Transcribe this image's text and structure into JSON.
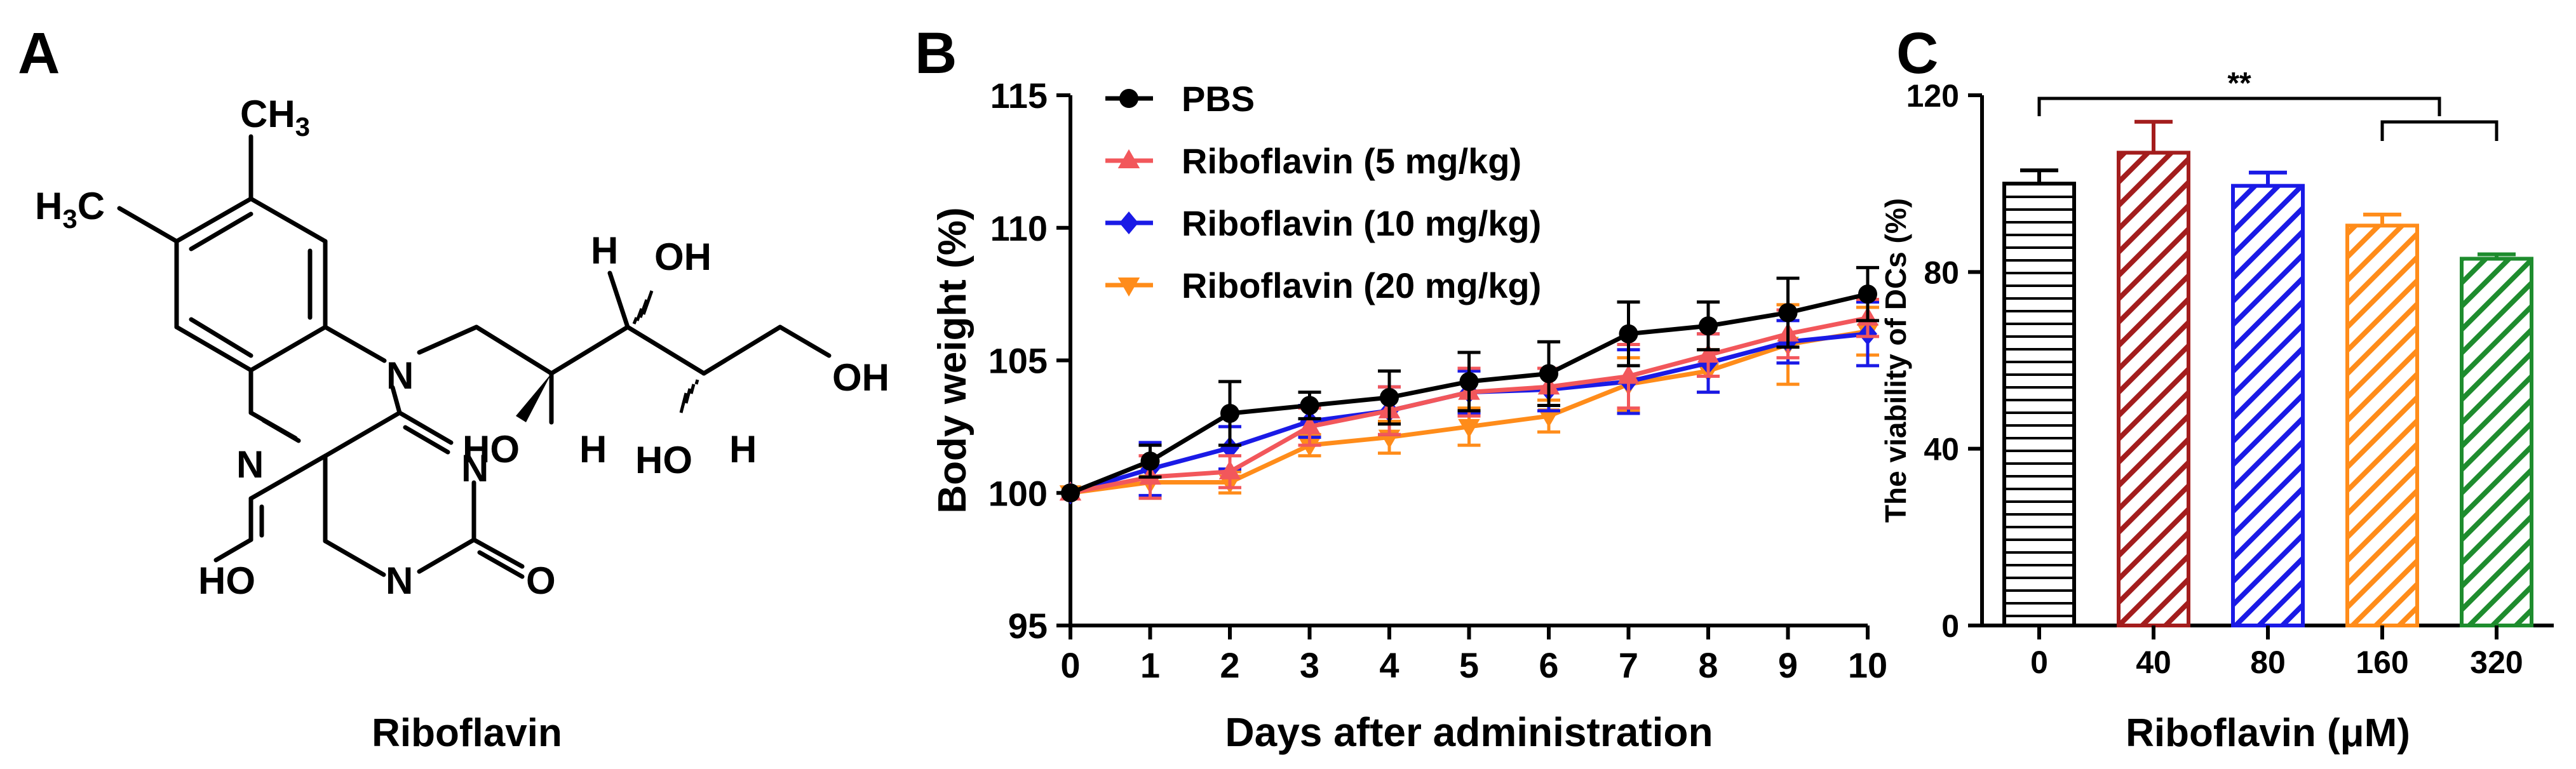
{
  "figure": {
    "panel_a": {
      "letter": "A",
      "caption": "Riboflavin",
      "atoms": {
        "ch3": "CH",
        "ch3_sub": "3",
        "h3c": "H",
        "h3c_sub": "3",
        "h3c_c": "C",
        "n10": "N",
        "n5": "N",
        "n3": "N",
        "n1": "N",
        "ho_bottom": "HO",
        "o_bottom": "O",
        "h1": "H",
        "oh1": "OH",
        "oh_right": "OH",
        "ho_mid": "HO",
        "h2": "H",
        "ho_mid2": "HO",
        "h3": "H"
      }
    },
    "panel_b": {
      "letter": "B"
    },
    "panel_c": {
      "letter": "C",
      "significance": "**"
    }
  },
  "chart_data": [
    {
      "type": "line",
      "title": "",
      "xlabel": "Days after administration",
      "ylabel": "Body weight (%)",
      "x": [
        0,
        1,
        2,
        3,
        4,
        5,
        6,
        7,
        8,
        9,
        10
      ],
      "xlim": [
        0,
        10
      ],
      "ylim": [
        95,
        115
      ],
      "xticks": [
        "0",
        "1",
        "2",
        "3",
        "4",
        "5",
        "6",
        "7",
        "8",
        "9",
        "10"
      ],
      "yticks": [
        "95",
        "100",
        "105",
        "110",
        "115"
      ],
      "ytick_values": [
        95,
        100,
        105,
        110,
        115
      ],
      "legend_position": "top-left",
      "series": [
        {
          "name": "PBS",
          "color": "#000000",
          "marker": "circle",
          "values": [
            100,
            101.2,
            103.0,
            103.3,
            103.6,
            104.2,
            104.5,
            106.0,
            106.3,
            106.8,
            107.5
          ],
          "errors": [
            0,
            0.6,
            1.2,
            0.5,
            1.0,
            1.1,
            1.2,
            1.2,
            0.9,
            1.3,
            1.0
          ]
        },
        {
          "name": "Riboflavin (5 mg/kg)",
          "color": "#f2575b",
          "marker": "triangle-up",
          "values": [
            100,
            100.6,
            100.8,
            102.5,
            103.1,
            103.8,
            104.0,
            104.4,
            105.2,
            106.0,
            106.6
          ],
          "errors": [
            0,
            0.8,
            0.6,
            0.7,
            0.9,
            0.9,
            0.7,
            1.2,
            0.8,
            0.9,
            0.7
          ]
        },
        {
          "name": "Riboflavin (10 mg/kg)",
          "color": "#1a1ae6",
          "marker": "diamond",
          "values": [
            100,
            100.9,
            101.7,
            102.7,
            103.1,
            103.8,
            103.9,
            104.2,
            104.9,
            105.7,
            106.0
          ],
          "errors": [
            0,
            1.0,
            0.8,
            0.6,
            0.9,
            0.8,
            0.8,
            1.2,
            1.1,
            0.8,
            1.2
          ]
        },
        {
          "name": "Riboflavin (20 mg/kg)",
          "color": "#ff8c1a",
          "marker": "triangle-down",
          "values": [
            100,
            100.4,
            100.4,
            101.8,
            102.1,
            102.5,
            102.9,
            104.1,
            104.6,
            105.6,
            106.1
          ],
          "errors": [
            0,
            0.6,
            0.4,
            0.4,
            0.6,
            0.7,
            0.6,
            1.0,
            0.8,
            1.5,
            0.9
          ]
        }
      ]
    },
    {
      "type": "bar",
      "title": "",
      "xlabel": "Riboflavin (μM)",
      "ylabel": "The viability of DCs (%)",
      "categories": [
        "0",
        "40",
        "80",
        "160",
        "320"
      ],
      "values": [
        100,
        107,
        99.5,
        90.5,
        83
      ],
      "errors": [
        3,
        7,
        3,
        2.5,
        1
      ],
      "colors": [
        "#000000",
        "#a31d1d",
        "#1a1ae6",
        "#ff8c1a",
        "#1e8c2e"
      ],
      "patterns": [
        "horizontal",
        "diagonal",
        "diagonal",
        "diagonal",
        "diagonal"
      ],
      "ylim": [
        0,
        120
      ],
      "yticks": [
        "0",
        "40",
        "80",
        "120"
      ],
      "ytick_values": [
        0,
        40,
        80,
        120
      ],
      "annotations": [
        {
          "text": "**",
          "from_category": "0",
          "to_category": "160-320 bracket"
        }
      ]
    }
  ]
}
